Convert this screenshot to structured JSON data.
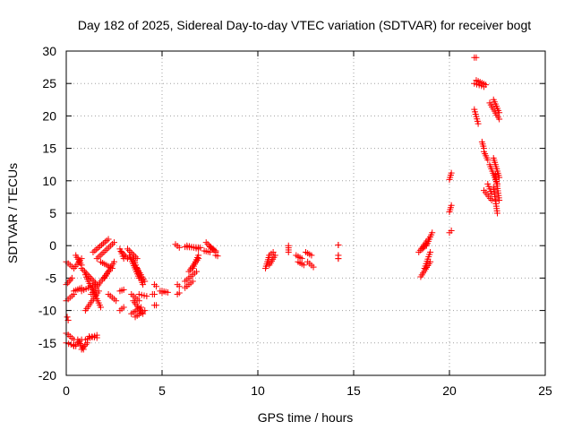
{
  "chart_data": {
    "type": "scatter",
    "title": "Day 182 of 2025, Sidereal Day-to-day VTEC variation (SDTVAR) for receiver bogt",
    "xlabel": "GPS time / hours",
    "ylabel": "SDTVAR / TECUs",
    "xlim": [
      0,
      25
    ],
    "ylim": [
      -20,
      30
    ],
    "xticks": [
      0,
      5,
      10,
      15,
      20,
      25
    ],
    "yticks": [
      -20,
      -15,
      -10,
      -5,
      0,
      5,
      10,
      15,
      20,
      25,
      30
    ],
    "grid": true,
    "marker": "plus",
    "color": "#ff0000",
    "segments": [
      [
        [
          0.0,
          -2.5
        ],
        [
          0.4,
          -3.5
        ]
      ],
      [
        [
          0.0,
          -6.0
        ],
        [
          0.3,
          -5.0
        ]
      ],
      [
        [
          0.0,
          -8.5
        ],
        [
          0.4,
          -7.5
        ]
      ],
      [
        [
          0.05,
          -11.0
        ],
        [
          0.1,
          -11.5
        ]
      ],
      [
        [
          0.0,
          -13.5
        ],
        [
          0.4,
          -14.5
        ]
      ],
      [
        [
          0.0,
          -15.0
        ],
        [
          0.5,
          -15.5
        ]
      ],
      [
        [
          0.4,
          -15.5
        ],
        [
          0.8,
          -14.5
        ]
      ],
      [
        [
          0.6,
          -14.5
        ],
        [
          0.9,
          -16.0
        ]
      ],
      [
        [
          0.8,
          -16.0
        ],
        [
          1.1,
          -15.0
        ]
      ],
      [
        [
          1.0,
          -14.5
        ],
        [
          1.6,
          -13.8
        ]
      ],
      [
        [
          1.2,
          -14.0
        ],
        [
          1.6,
          -14.2
        ]
      ],
      [
        [
          0.5,
          -1.5
        ],
        [
          0.8,
          -3.0
        ]
      ],
      [
        [
          0.4,
          -3.5
        ],
        [
          0.8,
          -2.0
        ]
      ],
      [
        [
          0.4,
          -7.0
        ],
        [
          0.8,
          -6.5
        ]
      ],
      [
        [
          0.8,
          -7.0
        ],
        [
          1.5,
          -6.0
        ]
      ],
      [
        [
          0.8,
          -3.5
        ],
        [
          1.6,
          -6.0
        ]
      ],
      [
        [
          1.0,
          -4.5
        ],
        [
          1.8,
          -9.5
        ]
      ],
      [
        [
          1.3,
          -7.5
        ],
        [
          2.2,
          -4.0
        ]
      ],
      [
        [
          1.0,
          -10.0
        ],
        [
          1.7,
          -7.0
        ]
      ],
      [
        [
          1.4,
          -1.0
        ],
        [
          2.2,
          1.0
        ]
      ],
      [
        [
          1.6,
          -2.0
        ],
        [
          2.5,
          0.5
        ]
      ],
      [
        [
          1.8,
          -2.5
        ],
        [
          2.4,
          -3.5
        ]
      ],
      [
        [
          2.0,
          -5.0
        ],
        [
          2.5,
          -2.5
        ]
      ],
      [
        [
          2.2,
          -7.5
        ],
        [
          2.6,
          -8.5
        ]
      ],
      [
        [
          2.8,
          -0.5
        ],
        [
          3.0,
          -2.0
        ]
      ],
      [
        [
          2.9,
          -1.0
        ],
        [
          3.2,
          -2.0
        ]
      ],
      [
        [
          2.8,
          -7.0
        ],
        [
          3.0,
          -6.8
        ]
      ],
      [
        [
          2.8,
          -10.0
        ],
        [
          3.0,
          -9.5
        ]
      ],
      [
        [
          3.2,
          -0.5
        ],
        [
          3.7,
          -2.0
        ]
      ],
      [
        [
          3.3,
          -1.5
        ],
        [
          3.8,
          -5.0
        ]
      ],
      [
        [
          3.5,
          -2.0
        ],
        [
          4.0,
          -6.0
        ]
      ],
      [
        [
          3.7,
          -3.5
        ],
        [
          4.1,
          -5.5
        ]
      ],
      [
        [
          3.4,
          -7.5
        ],
        [
          3.8,
          -8.5
        ]
      ],
      [
        [
          3.5,
          -8.5
        ],
        [
          4.0,
          -10.5
        ]
      ],
      [
        [
          3.4,
          -10.5
        ],
        [
          3.9,
          -9.5
        ]
      ],
      [
        [
          3.6,
          -11.0
        ],
        [
          4.1,
          -10.0
        ]
      ],
      [
        [
          3.8,
          -7.5
        ],
        [
          4.2,
          -7.8
        ]
      ],
      [
        [
          4.6,
          -6.0
        ],
        [
          4.7,
          -6.3
        ]
      ],
      [
        [
          4.5,
          -7.5
        ],
        [
          4.6,
          -7.5
        ]
      ],
      [
        [
          4.6,
          -9.2
        ],
        [
          4.7,
          -9.2
        ]
      ],
      [
        [
          4.9,
          -7.0
        ],
        [
          5.0,
          -7.3
        ]
      ],
      [
        [
          5.0,
          -7.0
        ],
        [
          5.3,
          -7.2
        ]
      ],
      [
        [
          5.7,
          0.2
        ],
        [
          5.9,
          -0.3
        ]
      ],
      [
        [
          5.8,
          -6.0
        ],
        [
          5.9,
          -6.3
        ]
      ],
      [
        [
          5.8,
          -7.5
        ],
        [
          5.9,
          -7.3
        ]
      ],
      [
        [
          6.2,
          -5.5
        ],
        [
          6.8,
          -4.0
        ]
      ],
      [
        [
          6.2,
          -6.5
        ],
        [
          6.6,
          -5.5
        ]
      ],
      [
        [
          6.4,
          -4.0
        ],
        [
          6.9,
          -2.0
        ]
      ],
      [
        [
          6.6,
          -3.5
        ],
        [
          6.9,
          -1.5
        ]
      ],
      [
        [
          6.2,
          -0.2
        ],
        [
          7.0,
          -0.3
        ]
      ],
      [
        [
          6.3,
          0.0
        ],
        [
          6.9,
          -0.5
        ]
      ],
      [
        [
          7.2,
          -0.8
        ],
        [
          7.5,
          -1.0
        ]
      ],
      [
        [
          7.3,
          0.5
        ],
        [
          7.8,
          -1.0
        ]
      ],
      [
        [
          7.5,
          -0.2
        ],
        [
          7.8,
          -0.8
        ]
      ],
      [
        [
          7.8,
          -1.5
        ],
        [
          7.9,
          -1.6
        ]
      ],
      [
        [
          10.4,
          -3.5
        ],
        [
          10.6,
          -1.5
        ]
      ],
      [
        [
          10.6,
          -1.5
        ],
        [
          10.8,
          -1.0
        ]
      ],
      [
        [
          10.6,
          -3.0
        ],
        [
          10.9,
          -1.5
        ]
      ],
      [
        [
          11.6,
          -1.0
        ],
        [
          11.6,
          0.0
        ]
      ],
      [
        [
          12.0,
          -1.5
        ],
        [
          12.3,
          -2.0
        ]
      ],
      [
        [
          12.1,
          -2.5
        ],
        [
          12.4,
          -3.0
        ]
      ],
      [
        [
          12.5,
          -1.0
        ],
        [
          12.8,
          -1.5
        ]
      ],
      [
        [
          12.6,
          -2.5
        ],
        [
          12.9,
          -3.3
        ]
      ],
      [
        [
          14.2,
          0.1
        ],
        [
          14.2,
          0.1
        ]
      ],
      [
        [
          14.2,
          -1.5
        ],
        [
          14.2,
          -1.5
        ]
      ],
      [
        [
          14.2,
          -2.0
        ],
        [
          14.2,
          -2.0
        ]
      ],
      [
        [
          18.4,
          -1.0
        ],
        [
          18.9,
          1.0
        ]
      ],
      [
        [
          18.5,
          -4.8
        ],
        [
          19.0,
          -2.5
        ]
      ],
      [
        [
          18.7,
          -3.5
        ],
        [
          19.0,
          -1.0
        ]
      ],
      [
        [
          18.8,
          0.0
        ],
        [
          19.1,
          2.0
        ]
      ],
      [
        [
          18.6,
          -0.5
        ],
        [
          18.8,
          0.2
        ]
      ],
      [
        [
          20.0,
          2.0
        ],
        [
          20.1,
          2.3
        ]
      ],
      [
        [
          20.0,
          5.2
        ],
        [
          20.1,
          6.2
        ]
      ],
      [
        [
          20.0,
          10.2
        ],
        [
          20.1,
          11.2
        ]
      ],
      [
        [
          21.3,
          29.0
        ],
        [
          21.4,
          29.0
        ]
      ],
      [
        [
          21.3,
          25.0
        ],
        [
          21.8,
          24.5
        ]
      ],
      [
        [
          21.4,
          25.5
        ],
        [
          21.9,
          24.8
        ]
      ],
      [
        [
          21.3,
          21.0
        ],
        [
          21.5,
          18.8
        ]
      ],
      [
        [
          21.7,
          16.0
        ],
        [
          21.8,
          15.0
        ]
      ],
      [
        [
          21.8,
          14.5
        ],
        [
          22.0,
          13.2
        ]
      ],
      [
        [
          21.8,
          8.5
        ],
        [
          22.2,
          7.0
        ]
      ],
      [
        [
          22.0,
          9.5
        ],
        [
          22.2,
          8.0
        ]
      ],
      [
        [
          22.1,
          12.5
        ],
        [
          22.5,
          9.5
        ]
      ],
      [
        [
          22.3,
          13.5
        ],
        [
          22.6,
          10.5
        ]
      ],
      [
        [
          22.3,
          9.0
        ],
        [
          22.5,
          5.0
        ]
      ],
      [
        [
          22.4,
          11.0
        ],
        [
          22.6,
          7.0
        ]
      ],
      [
        [
          22.1,
          22.0
        ],
        [
          22.6,
          19.5
        ]
      ],
      [
        [
          22.3,
          22.5
        ],
        [
          22.6,
          20.5
        ]
      ]
    ]
  }
}
